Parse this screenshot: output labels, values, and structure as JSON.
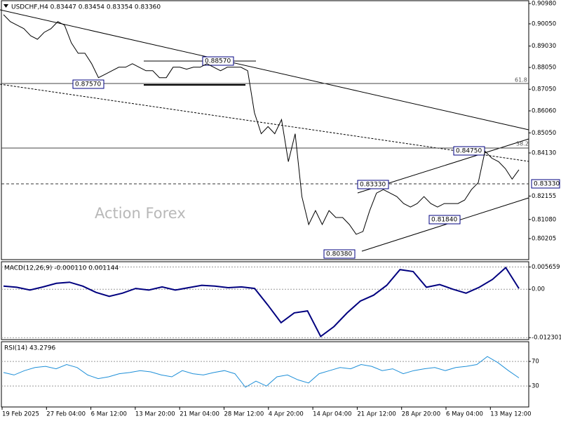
{
  "chart_data": [
    {
      "type": "line",
      "title": "USDCHF,H4 0.83447 0.83454 0.83354 0.83360",
      "color": "#000000",
      "values": [
        0.9047,
        0.9015,
        0.8999,
        0.8983,
        0.895,
        0.8934,
        0.8966,
        0.8983,
        0.9015,
        0.8999,
        0.8918,
        0.887,
        0.887,
        0.8822,
        0.8758,
        0.8774,
        0.879,
        0.8806,
        0.8806,
        0.8822,
        0.8806,
        0.879,
        0.879,
        0.8758,
        0.8758,
        0.8806,
        0.8806,
        0.8797,
        0.8806,
        0.8806,
        0.8822,
        0.8806,
        0.879,
        0.8806,
        0.8806,
        0.8806,
        0.879,
        0.8598,
        0.8501,
        0.8534,
        0.8501,
        0.8566,
        0.8373,
        0.8501,
        0.8213,
        0.8085,
        0.8149,
        0.8085,
        0.8149,
        0.8117,
        0.8117,
        0.8085,
        0.804,
        0.8053,
        0.8149,
        0.8229,
        0.8245,
        0.8229,
        0.8213,
        0.8181,
        0.8165,
        0.8181,
        0.8213,
        0.8181,
        0.8165,
        0.8181,
        0.8181,
        0.8181,
        0.8197,
        0.8245,
        0.8277,
        0.8421,
        0.8389,
        0.8373,
        0.8341,
        0.8293,
        0.8336
      ],
      "ylim": [
        0.7924,
        0.9111
      ],
      "yticks": [
        {
          "value": 0.9098,
          "label": "0.90980"
        },
        {
          "value": 0.9005,
          "label": "0.90050"
        },
        {
          "value": 0.8903,
          "label": "0.89030"
        },
        {
          "value": 0.8805,
          "label": "0.88050"
        },
        {
          "value": 0.8705,
          "label": "0.87050"
        },
        {
          "value": 0.8606,
          "label": "0.86060"
        },
        {
          "value": 0.8505,
          "label": "0.85050"
        },
        {
          "value": 0.8413,
          "label": "0.84130"
        },
        {
          "value": 0.82155,
          "label": "0.82155"
        },
        {
          "value": 0.8108,
          "label": "0.81080"
        },
        {
          "value": 0.80205,
          "label": "0.80205"
        }
      ],
      "annotations": [
        "0.87570",
        "0.88570",
        "0.84750",
        "0.83330",
        "0.81840",
        "0.80380",
        "61.8",
        "38.2",
        "0.83330"
      ],
      "watermark": "Action Forex"
    },
    {
      "type": "line",
      "title": "MACD(12,26,9) -0.000110 0.001144",
      "color": "#00007f",
      "values": [
        0.0008,
        0.0005,
        -0.0002,
        0.0006,
        0.0015,
        0.0018,
        0.0008,
        -0.0008,
        -0.0018,
        -0.001,
        0.0002,
        -0.0002,
        0.0006,
        -0.0002,
        0.0004,
        0.001,
        0.0008,
        0.0004,
        0.0006,
        0.0002,
        -0.004,
        -0.0085,
        -0.006,
        -0.0055,
        -0.012,
        -0.0095,
        -0.006,
        -0.003,
        -0.0015,
        0.001,
        0.005,
        0.0045,
        0.0005,
        0.0012,
        0.0,
        -0.001,
        0.0005,
        0.0025,
        0.0055,
        0.0002
      ],
      "ylim": [
        -0.0128,
        0.007
      ],
      "yticks": [
        0.005659,
        {
          "value": 0,
          "label": "0.00"
        },
        -0.012301
      ]
    },
    {
      "type": "line",
      "title": "RSI(14) 43.2796",
      "color": "#1e8fd8",
      "values": [
        52,
        48,
        55,
        60,
        62,
        58,
        65,
        60,
        48,
        42,
        45,
        50,
        52,
        55,
        53,
        48,
        45,
        55,
        50,
        48,
        52,
        55,
        50,
        28,
        38,
        30,
        45,
        48,
        40,
        35,
        50,
        55,
        60,
        58,
        65,
        62,
        55,
        58,
        50,
        55,
        58,
        60,
        55,
        60,
        62,
        65,
        78,
        68,
        55,
        43.28
      ],
      "ylim": [
        -4,
        102
      ],
      "yticks": [
        70,
        30
      ]
    }
  ],
  "time_labels": [
    "19 Feb 2025",
    "27 Feb 04:00",
    "6 Mar 12:00",
    "13 Mar 20:00",
    "21 Mar 04:00",
    "28 Mar 12:00",
    "4 Apr 20:00",
    "14 Apr 04:00",
    "21 Apr 12:00",
    "28 Apr 20:00",
    "6 May 04:00",
    "13 May 12:00"
  ]
}
